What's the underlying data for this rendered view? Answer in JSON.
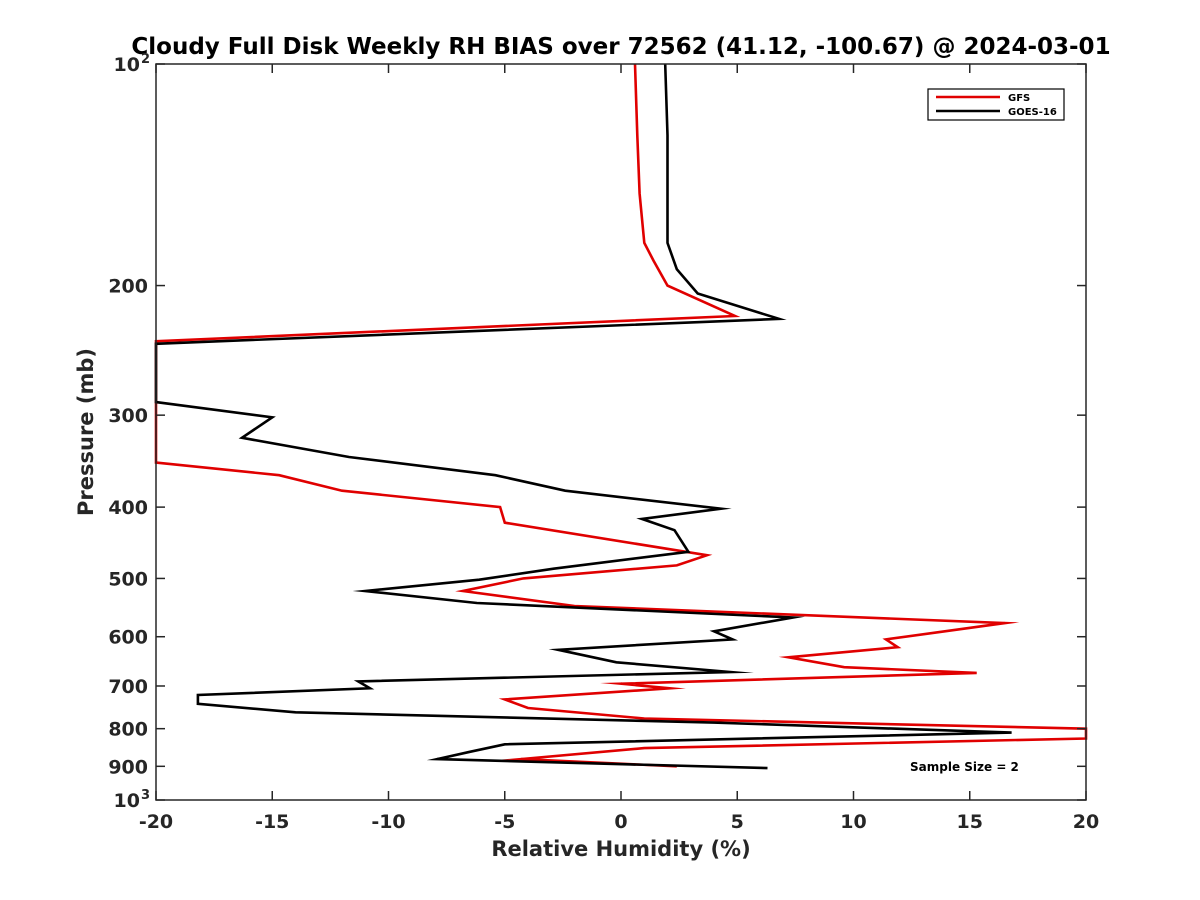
{
  "chart_data": {
    "type": "line",
    "title": "Cloudy Full Disk Weekly RH BIAS over 72562 (41.12, -100.67) @ 2024-03-01",
    "xlabel": "Relative Humidity (%)",
    "ylabel": "Pressure (mb)",
    "xlim": [
      -20,
      20
    ],
    "ylim": [
      100,
      1000
    ],
    "y_scale": "log",
    "y_reversed": true,
    "grid": false,
    "legend_position": "top-right",
    "annotation": "Sample Size = 2",
    "x_ticks": [
      "-20",
      "-15",
      "-10",
      "-5",
      "0",
      "5",
      "10",
      "15",
      "20"
    ],
    "y_ticks": [
      {
        "value": 100,
        "label": "10",
        "exp": "2"
      },
      {
        "value": 200,
        "label": "200"
      },
      {
        "value": 300,
        "label": "300"
      },
      {
        "value": 400,
        "label": "400"
      },
      {
        "value": 500,
        "label": "500"
      },
      {
        "value": 600,
        "label": "600"
      },
      {
        "value": 700,
        "label": "700"
      },
      {
        "value": 800,
        "label": "800"
      },
      {
        "value": 900,
        "label": "900"
      },
      {
        "value": 1000,
        "label": "10",
        "exp": "3"
      }
    ],
    "series": [
      {
        "name": "GFS",
        "color": "#e00000",
        "points": [
          [
            0.6,
            100
          ],
          [
            0.7,
            125
          ],
          [
            0.8,
            150
          ],
          [
            1.0,
            175
          ],
          [
            1.4,
            185
          ],
          [
            2.0,
            200
          ],
          [
            4.9,
            220
          ],
          [
            -20.0,
            238
          ],
          [
            -20.0,
            348
          ],
          [
            -14.7,
            362
          ],
          [
            -12.0,
            380
          ],
          [
            -5.2,
            400
          ],
          [
            -5.0,
            420
          ],
          [
            3.7,
            465
          ],
          [
            2.4,
            480
          ],
          [
            -4.2,
            500
          ],
          [
            -6.8,
            520
          ],
          [
            -2.0,
            545
          ],
          [
            16.5,
            575
          ],
          [
            11.4,
            605
          ],
          [
            11.9,
            620
          ],
          [
            7.2,
            640
          ],
          [
            9.6,
            660
          ],
          [
            15.3,
            672
          ],
          [
            0.0,
            695
          ],
          [
            2.1,
            705
          ],
          [
            -5.0,
            730
          ],
          [
            -4.0,
            750
          ],
          [
            1.0,
            775
          ],
          [
            20.0,
            800
          ],
          [
            20.0,
            825
          ],
          [
            1.0,
            850
          ],
          [
            -4.3,
            880
          ],
          [
            2.4,
            900
          ]
        ]
      },
      {
        "name": "GOES-16",
        "color": "#000000",
        "points": [
          [
            1.9,
            100
          ],
          [
            2.0,
            125
          ],
          [
            2.0,
            150
          ],
          [
            2.0,
            175
          ],
          [
            2.4,
            190
          ],
          [
            3.3,
            205
          ],
          [
            6.8,
            222
          ],
          [
            -20.0,
            240
          ],
          [
            -20.0,
            288
          ],
          [
            -15.0,
            302
          ],
          [
            -16.3,
            322
          ],
          [
            -11.7,
            342
          ],
          [
            -5.4,
            362
          ],
          [
            -2.4,
            380
          ],
          [
            4.3,
            402
          ],
          [
            0.9,
            415
          ],
          [
            2.3,
            430
          ],
          [
            2.9,
            460
          ],
          [
            -2.9,
            485
          ],
          [
            -6.1,
            502
          ],
          [
            -11.0,
            520
          ],
          [
            -6.2,
            540
          ],
          [
            7.4,
            565
          ],
          [
            4.0,
            590
          ],
          [
            4.8,
            605
          ],
          [
            -2.7,
            625
          ],
          [
            -0.2,
            650
          ],
          [
            4.7,
            670
          ],
          [
            -11.3,
            690
          ],
          [
            -10.8,
            705
          ],
          [
            -18.2,
            720
          ],
          [
            -18.2,
            740
          ],
          [
            -14.0,
            760
          ],
          [
            4.0,
            785
          ],
          [
            16.8,
            810
          ],
          [
            -5.0,
            840
          ],
          [
            -6.5,
            860
          ],
          [
            -7.9,
            880
          ],
          [
            6.3,
            905
          ]
        ]
      }
    ]
  }
}
